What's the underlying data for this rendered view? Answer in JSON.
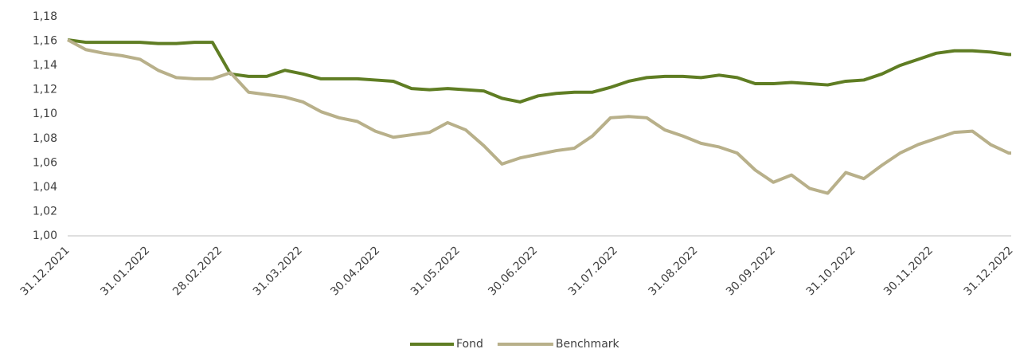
{
  "chart_data": {
    "type": "line",
    "x": [
      "31.12.2021",
      "07.01.2022",
      "14.01.2022",
      "21.01.2022",
      "28.01.2022",
      "04.02.2022",
      "11.02.2022",
      "18.02.2022",
      "25.02.2022",
      "04.03.2022",
      "11.03.2022",
      "18.03.2022",
      "25.03.2022",
      "01.04.2022",
      "08.04.2022",
      "15.04.2022",
      "22.04.2022",
      "29.04.2022",
      "06.05.2022",
      "13.05.2022",
      "20.05.2022",
      "27.05.2022",
      "03.06.2022",
      "10.06.2022",
      "17.06.2022",
      "24.06.2022",
      "01.07.2022",
      "08.07.2022",
      "15.07.2022",
      "22.07.2022",
      "29.07.2022",
      "05.08.2022",
      "12.08.2022",
      "19.08.2022",
      "26.08.2022",
      "02.09.2022",
      "09.09.2022",
      "16.09.2022",
      "23.09.2022",
      "30.09.2022",
      "07.10.2022",
      "14.10.2022",
      "21.10.2022",
      "28.10.2022",
      "04.11.2022",
      "11.11.2022",
      "18.11.2022",
      "25.11.2022",
      "02.12.2022",
      "09.12.2022",
      "16.12.2022",
      "23.12.2022",
      "30.12.2022",
      "31.12.2022"
    ],
    "series": [
      {
        "name": "Fond",
        "color": "#5f7d23",
        "values": [
          1.161,
          1.159,
          1.159,
          1.159,
          1.159,
          1.158,
          1.158,
          1.159,
          1.159,
          1.133,
          1.131,
          1.131,
          1.136,
          1.133,
          1.129,
          1.129,
          1.129,
          1.128,
          1.127,
          1.121,
          1.12,
          1.121,
          1.12,
          1.119,
          1.113,
          1.11,
          1.115,
          1.117,
          1.118,
          1.118,
          1.122,
          1.127,
          1.13,
          1.131,
          1.131,
          1.13,
          1.132,
          1.13,
          1.125,
          1.125,
          1.126,
          1.125,
          1.124,
          1.127,
          1.128,
          1.133,
          1.14,
          1.145,
          1.15,
          1.152,
          1.152,
          1.151,
          1.149,
          1.149
        ]
      },
      {
        "name": "Benchmark",
        "color": "#b8b08a",
        "values": [
          1.161,
          1.153,
          1.15,
          1.148,
          1.145,
          1.136,
          1.13,
          1.129,
          1.129,
          1.134,
          1.118,
          1.116,
          1.114,
          1.11,
          1.102,
          1.097,
          1.094,
          1.086,
          1.081,
          1.083,
          1.085,
          1.093,
          1.087,
          1.074,
          1.059,
          1.064,
          1.067,
          1.07,
          1.072,
          1.082,
          1.097,
          1.098,
          1.097,
          1.087,
          1.082,
          1.076,
          1.073,
          1.068,
          1.054,
          1.044,
          1.05,
          1.039,
          1.035,
          1.052,
          1.047,
          1.058,
          1.068,
          1.075,
          1.08,
          1.085,
          1.086,
          1.075,
          1.068,
          1.068
        ]
      }
    ],
    "xlim": [
      "31.12.2021",
      "31.12.2022"
    ],
    "xticks": [
      "31.12.2021",
      "31.01.2022",
      "28.02.2022",
      "31.03.2022",
      "30.04.2022",
      "31.05.2022",
      "30.06.2022",
      "31.07.2022",
      "31.08.2022",
      "30.09.2022",
      "31.10.2022",
      "30.11.2022",
      "31.12.2022"
    ],
    "ylim": [
      1.0,
      1.18
    ],
    "yticks": [
      {
        "value": 1.0,
        "label": "1,00"
      },
      {
        "value": 1.02,
        "label": "1,02"
      },
      {
        "value": 1.04,
        "label": "1,04"
      },
      {
        "value": 1.06,
        "label": "1,06"
      },
      {
        "value": 1.08,
        "label": "1,08"
      },
      {
        "value": 1.1,
        "label": "1,10"
      },
      {
        "value": 1.12,
        "label": "1,12"
      },
      {
        "value": 1.14,
        "label": "1,14"
      },
      {
        "value": 1.16,
        "label": "1,16"
      },
      {
        "value": 1.18,
        "label": "1,18"
      }
    ],
    "grid": false,
    "legend": "bottom"
  }
}
